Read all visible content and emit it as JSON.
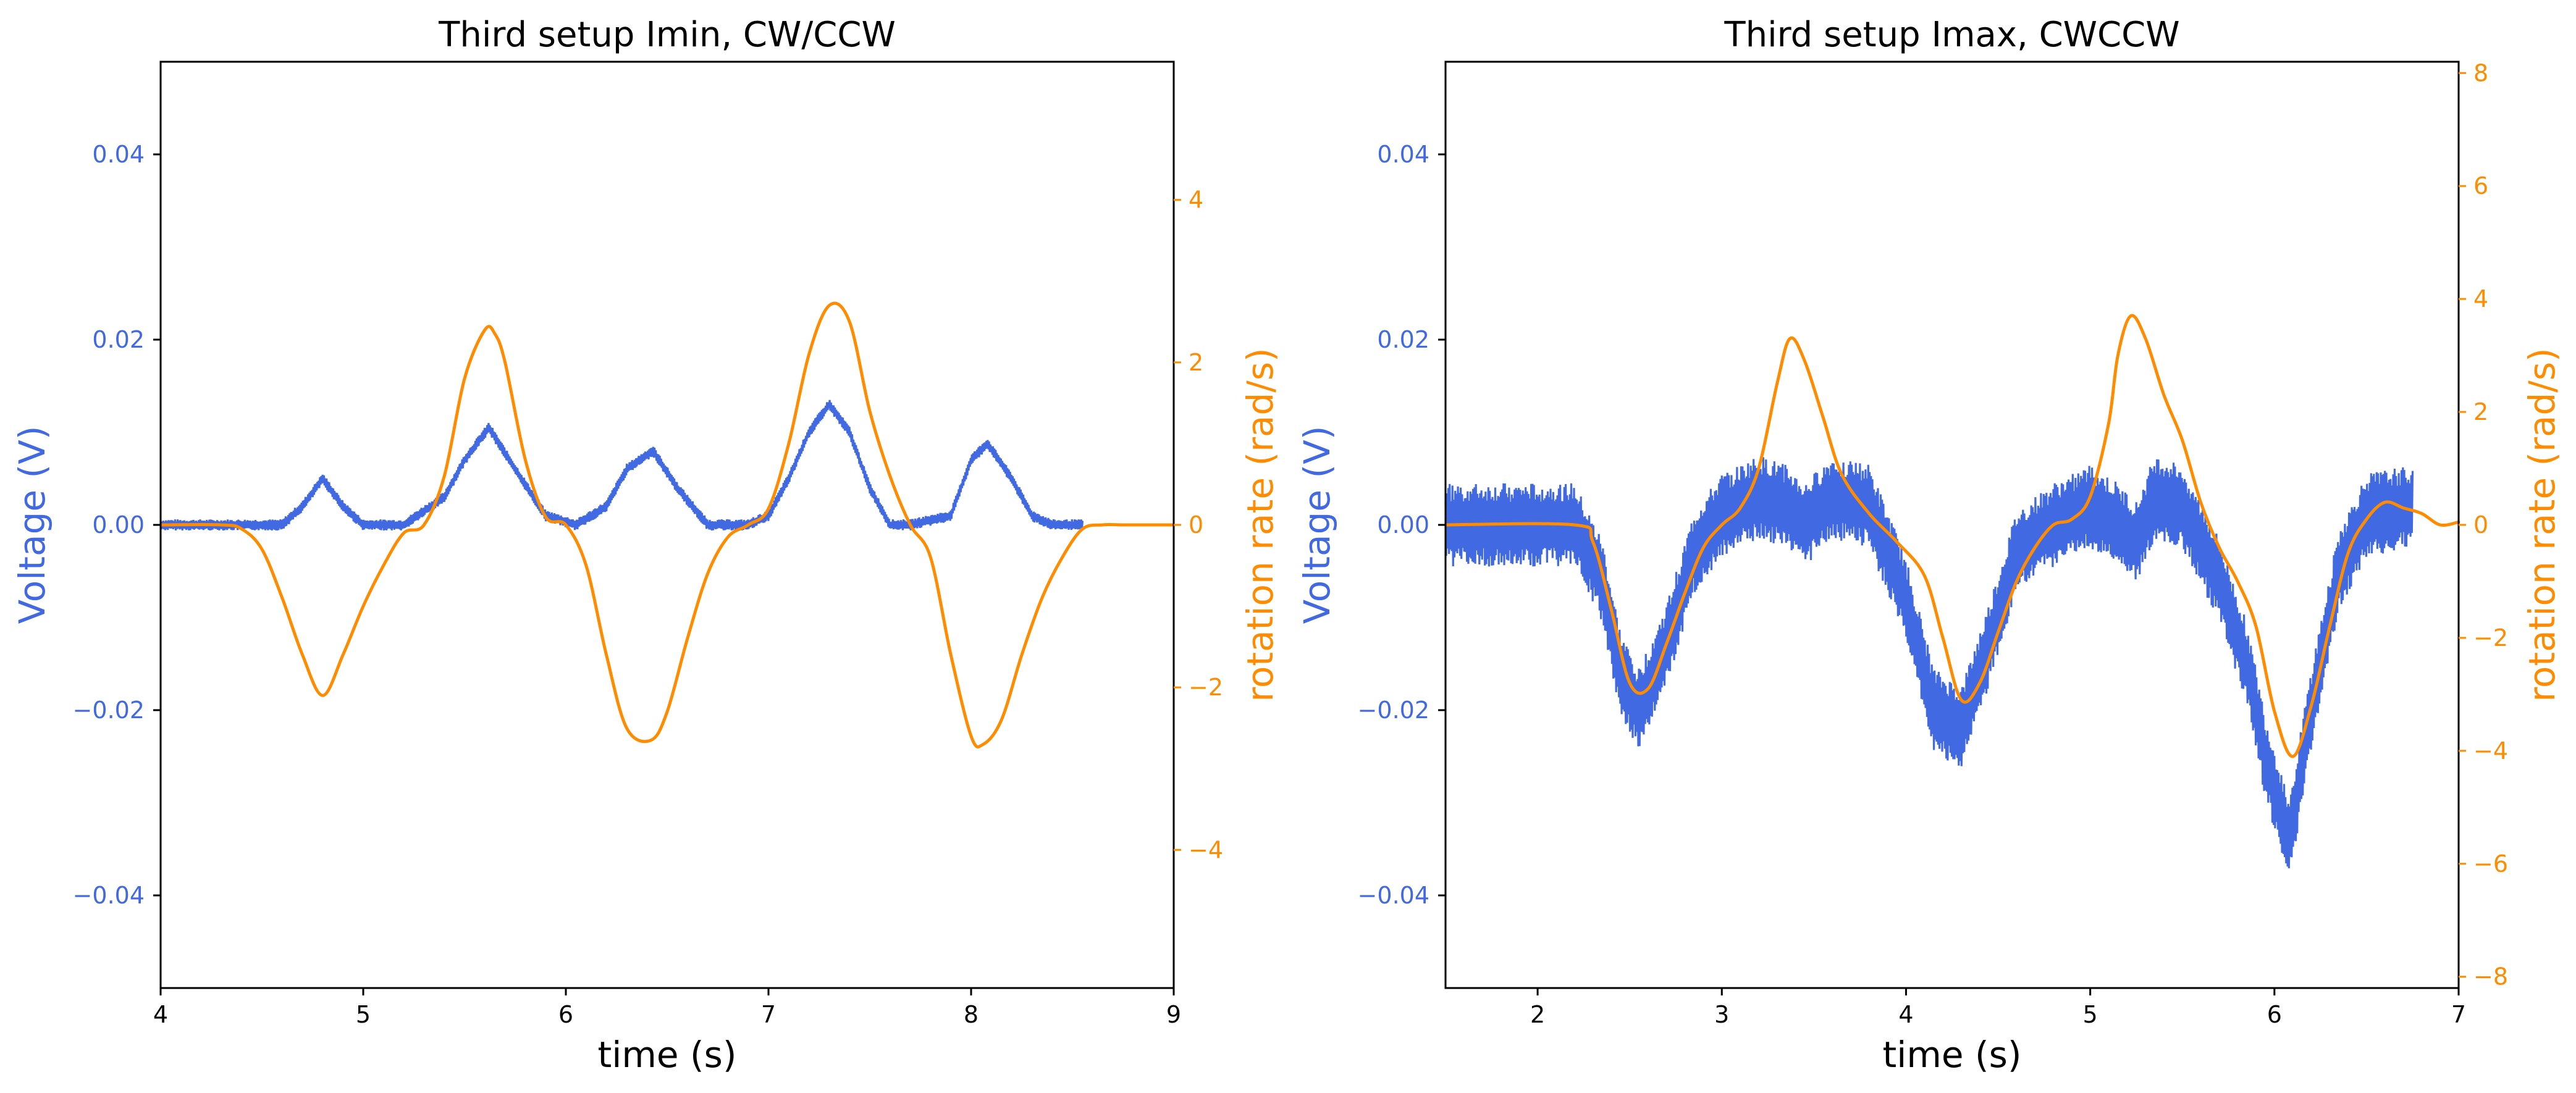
{
  "chart_data": [
    {
      "type": "line",
      "title": "Third setup Imin, CW/CCW",
      "xlabel": "time (s)",
      "ylabel": "Voltage (V)",
      "ylabel_right": "rotation rate (rad/s)",
      "xlim": [
        4,
        9
      ],
      "ylim": [
        -0.05,
        0.05
      ],
      "ylim_right": [
        -5.7,
        5.7
      ],
      "x_ticks": [
        4,
        5,
        6,
        7,
        8,
        9
      ],
      "x_tick_labels": [
        "4",
        "5",
        "6",
        "7",
        "8",
        "9"
      ],
      "y_ticks": [
        -0.04,
        -0.02,
        0.0,
        0.02,
        0.04
      ],
      "y_tick_labels": [
        "−0.04",
        "−0.02",
        "0.00",
        "0.02",
        "0.04"
      ],
      "y_right_ticks": [
        -4,
        -2,
        0,
        2,
        4
      ],
      "y_right_tick_labels": [
        "−4",
        "−2",
        "0",
        "2",
        "4"
      ],
      "colors": {
        "voltage": "#4169E1",
        "rotation": "#FF8C00"
      },
      "series": [
        {
          "name": "Voltage",
          "axis": "left",
          "color": "#4169E1",
          "noise_band": 0.0006,
          "x": [
            4.0,
            4.6,
            4.7,
            4.8,
            4.9,
            5.0,
            5.2,
            5.4,
            5.5,
            5.62,
            5.75,
            5.9,
            6.05,
            6.2,
            6.3,
            6.43,
            6.55,
            6.7,
            6.9,
            7.0,
            7.1,
            7.2,
            7.3,
            7.4,
            7.5,
            7.6,
            7.7,
            7.9,
            8.0,
            8.08,
            8.2,
            8.3,
            8.4,
            8.55
          ],
          "values": [
            0.0,
            0.0,
            0.002,
            0.005,
            0.002,
            0.0,
            0.0,
            0.003,
            0.007,
            0.0105,
            0.006,
            0.001,
            0.0,
            0.002,
            0.006,
            0.008,
            0.004,
            0.0,
            0.0,
            0.001,
            0.005,
            0.01,
            0.013,
            0.01,
            0.004,
            0.0,
            0.0,
            0.001,
            0.007,
            0.0088,
            0.005,
            0.001,
            0.0,
            0.0
          ]
        },
        {
          "name": "rotation rate",
          "axis": "right",
          "color": "#FF8C00",
          "x": [
            4.0,
            4.3,
            4.4,
            4.5,
            4.6,
            4.7,
            4.8,
            4.9,
            5.0,
            5.1,
            5.2,
            5.3,
            5.4,
            5.5,
            5.6,
            5.65,
            5.7,
            5.8,
            5.9,
            6.0,
            6.1,
            6.2,
            6.3,
            6.42,
            6.5,
            6.6,
            6.7,
            6.8,
            6.9,
            7.0,
            7.1,
            7.2,
            7.3,
            7.4,
            7.5,
            7.6,
            7.7,
            7.8,
            7.9,
            8.0,
            8.06,
            8.15,
            8.25,
            8.35,
            8.45,
            8.55,
            8.65,
            8.75,
            8.85,
            9.0
          ],
          "values": [
            0.0,
            0.0,
            -0.05,
            -0.3,
            -0.9,
            -1.6,
            -2.1,
            -1.6,
            -1.0,
            -0.5,
            -0.1,
            0.0,
            0.6,
            1.8,
            2.4,
            2.35,
            2.0,
            0.8,
            0.1,
            0.0,
            -0.5,
            -1.6,
            -2.5,
            -2.65,
            -2.3,
            -1.4,
            -0.6,
            -0.15,
            0.0,
            0.2,
            1.0,
            2.1,
            2.7,
            2.5,
            1.4,
            0.6,
            0.0,
            -0.4,
            -1.6,
            -2.6,
            -2.7,
            -2.4,
            -1.6,
            -0.9,
            -0.4,
            -0.05,
            0.0,
            0.0,
            0.0,
            0.0
          ]
        }
      ]
    },
    {
      "type": "line",
      "title": "Third setup Imax, CWCCW",
      "xlabel": "time (s)",
      "ylabel": "Voltage (V)",
      "ylabel_right": "rotation rate (rad/s)",
      "xlim": [
        1.5,
        7
      ],
      "ylim": [
        -0.05,
        0.05
      ],
      "ylim_right": [
        -8.2,
        8.2
      ],
      "x_ticks": [
        2,
        3,
        4,
        5,
        6,
        7
      ],
      "x_tick_labels": [
        "2",
        "3",
        "4",
        "5",
        "6",
        "7"
      ],
      "y_ticks": [
        -0.04,
        -0.02,
        0.0,
        0.02,
        0.04
      ],
      "y_tick_labels": [
        "−0.04",
        "−0.02",
        "0.00",
        "0.02",
        "0.04"
      ],
      "y_right_ticks": [
        -8,
        -6,
        -4,
        -2,
        0,
        2,
        4,
        6,
        8
      ],
      "y_right_tick_labels": [
        "−8",
        "−6",
        "−4",
        "−2",
        "0",
        "2",
        "4",
        "6",
        "8"
      ],
      "colors": {
        "voltage": "#4169E1",
        "rotation": "#FF8C00"
      },
      "series": [
        {
          "name": "Voltage",
          "axis": "left",
          "color": "#4169E1",
          "noise_band": 0.0045,
          "x": [
            1.5,
            2.2,
            2.35,
            2.45,
            2.55,
            2.7,
            2.85,
            3.0,
            3.2,
            3.35,
            3.45,
            3.6,
            3.8,
            4.0,
            4.15,
            4.3,
            4.45,
            4.6,
            4.8,
            5.0,
            5.15,
            5.25,
            5.35,
            5.5,
            5.7,
            5.85,
            5.95,
            6.08,
            6.2,
            6.35,
            6.5,
            6.75
          ],
          "values": [
            0.0,
            0.0,
            -0.006,
            -0.016,
            -0.02,
            -0.013,
            -0.003,
            0.001,
            0.003,
            0.002,
            0.0,
            0.003,
            0.002,
            -0.008,
            -0.02,
            -0.022,
            -0.013,
            -0.003,
            0.0,
            0.002,
            0.0,
            -0.002,
            0.003,
            0.002,
            -0.006,
            -0.015,
            -0.025,
            -0.034,
            -0.02,
            -0.005,
            0.001,
            0.002
          ]
        },
        {
          "name": "rotation rate",
          "axis": "right",
          "color": "#FF8C00",
          "x": [
            1.5,
            2.2,
            2.3,
            2.4,
            2.5,
            2.6,
            2.7,
            2.8,
            2.9,
            3.0,
            3.1,
            3.2,
            3.3,
            3.37,
            3.45,
            3.55,
            3.65,
            3.8,
            3.95,
            4.1,
            4.2,
            4.3,
            4.4,
            4.5,
            4.6,
            4.7,
            4.8,
            4.9,
            5.0,
            5.1,
            5.15,
            5.22,
            5.3,
            5.4,
            5.5,
            5.6,
            5.7,
            5.8,
            5.9,
            6.0,
            6.1,
            6.2,
            6.3,
            6.4,
            6.5,
            6.6,
            6.7,
            6.8,
            6.9,
            7.0
          ],
          "values": [
            0.0,
            0.0,
            -0.3,
            -1.5,
            -2.8,
            -2.9,
            -2.1,
            -1.2,
            -0.4,
            0.0,
            0.3,
            1.0,
            2.5,
            3.3,
            2.9,
            1.9,
            0.9,
            0.2,
            -0.3,
            -0.9,
            -2.0,
            -3.1,
            -2.8,
            -1.9,
            -1.0,
            -0.4,
            0.0,
            0.1,
            0.5,
            1.8,
            3.0,
            3.7,
            3.3,
            2.3,
            1.5,
            0.4,
            -0.4,
            -1.0,
            -1.8,
            -3.3,
            -4.1,
            -3.2,
            -1.8,
            -0.5,
            0.1,
            0.4,
            0.3,
            0.2,
            0.0,
            0.05
          ]
        }
      ]
    }
  ]
}
